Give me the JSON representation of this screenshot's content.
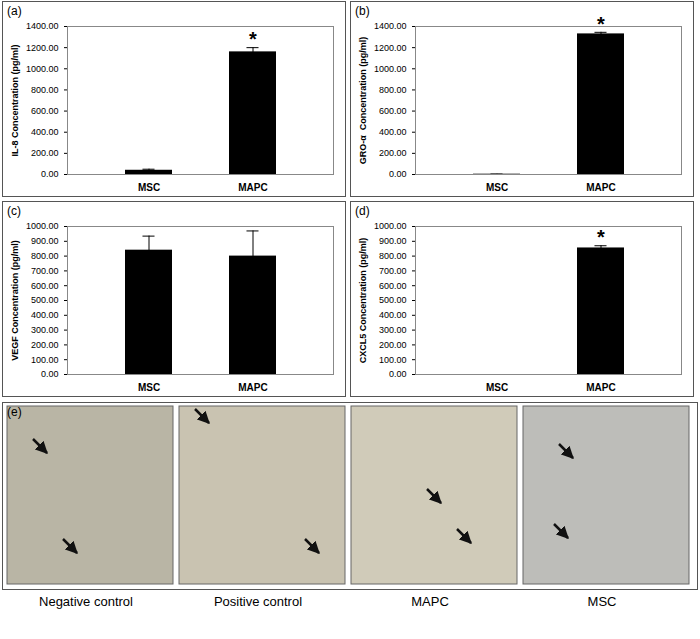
{
  "chart_data": [
    {
      "type": "bar",
      "panel_label": "(a)",
      "y_label": "IL-8 Concentration (pg/ml)",
      "categories": [
        "MSC",
        "MAPC"
      ],
      "values": [
        40,
        1160
      ],
      "errors": [
        10,
        40
      ],
      "color": "#000000",
      "ylim": [
        0,
        1400
      ],
      "yticks": [
        {
          "value": 0,
          "label": "0.00"
        },
        {
          "value": 200,
          "label": "200.00"
        },
        {
          "value": 400,
          "label": "400.00"
        },
        {
          "value": 600,
          "label": "600.00"
        },
        {
          "value": 800,
          "label": "800.00"
        },
        {
          "value": 1000,
          "label": "1000.00"
        },
        {
          "value": 1200,
          "label": "1200.00"
        },
        {
          "value": 1400,
          "label": "1400.00"
        }
      ],
      "grid": false,
      "annotations": [
        {
          "category": "MAPC",
          "text": "*"
        }
      ]
    },
    {
      "type": "bar",
      "panel_label": "(b)",
      "y_label": "GRO-α  Concentration (pg/ml)",
      "categories": [
        "MSC",
        "MAPC"
      ],
      "values": [
        3,
        1330
      ],
      "errors": [
        1,
        15
      ],
      "color": "#000000",
      "ylim": [
        0,
        1400
      ],
      "yticks": [
        {
          "value": 0,
          "label": "0.00"
        },
        {
          "value": 200,
          "label": "200.00"
        },
        {
          "value": 400,
          "label": "400.00"
        },
        {
          "value": 600,
          "label": "600.00"
        },
        {
          "value": 800,
          "label": "800.00"
        },
        {
          "value": 1000,
          "label": "1000.00"
        },
        {
          "value": 1200,
          "label": "1200.00"
        },
        {
          "value": 1400,
          "label": "1400.00"
        }
      ],
      "grid": false,
      "annotations": [
        {
          "category": "MAPC",
          "text": "*"
        }
      ]
    },
    {
      "type": "bar",
      "panel_label": "(c)",
      "y_label": "VEGF Concentration (pg/ml)",
      "categories": [
        "MSC",
        "MAPC"
      ],
      "values": [
        840,
        800
      ],
      "errors": [
        95,
        170
      ],
      "color": "#000000",
      "ylim": [
        0,
        1000
      ],
      "yticks": [
        {
          "value": 0,
          "label": "0.00"
        },
        {
          "value": 100,
          "label": "100.00"
        },
        {
          "value": 200,
          "label": "200.00"
        },
        {
          "value": 300,
          "label": "300.00"
        },
        {
          "value": 400,
          "label": "400.00"
        },
        {
          "value": 500,
          "label": "500.00"
        },
        {
          "value": 600,
          "label": "600.00"
        },
        {
          "value": 700,
          "label": "700.00"
        },
        {
          "value": 800,
          "label": "800.00"
        },
        {
          "value": 900,
          "label": "900.00"
        },
        {
          "value": 1000,
          "label": "1000.00"
        }
      ],
      "grid": false
    },
    {
      "type": "bar",
      "panel_label": "(d)",
      "y_label": "CXCL5 Concentration (pg/ml)",
      "categories": [
        "MSC",
        "MAPC"
      ],
      "values": [
        0,
        855
      ],
      "errors": [
        0,
        15
      ],
      "color": "#000000",
      "ylim": [
        0,
        1000
      ],
      "yticks": [
        {
          "value": 0,
          "label": "0.00"
        },
        {
          "value": 100,
          "label": "100.00"
        },
        {
          "value": 200,
          "label": "200.00"
        },
        {
          "value": 300,
          "label": "300.00"
        },
        {
          "value": 400,
          "label": "400.00"
        },
        {
          "value": 500,
          "label": "500.00"
        },
        {
          "value": 600,
          "label": "600.00"
        },
        {
          "value": 700,
          "label": "700.00"
        },
        {
          "value": 800,
          "label": "800.00"
        },
        {
          "value": 900,
          "label": "900.00"
        },
        {
          "value": 1000,
          "label": "1000.00"
        }
      ],
      "grid": false,
      "annotations": [
        {
          "category": "MAPC",
          "text": "*"
        }
      ]
    }
  ],
  "image_panel": {
    "panel_label": "(e)",
    "captions": [
      "Negative control",
      "Positive control",
      "MAPC",
      "MSC"
    ]
  }
}
